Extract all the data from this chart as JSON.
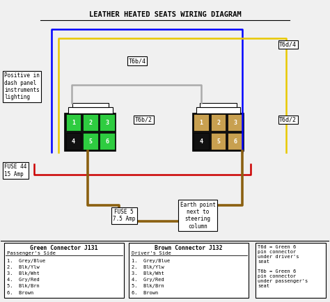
{
  "title": "LEATHER HEATED SEATS WIRING DIAGRAM",
  "bg_color": "#f0f0f0",
  "green_color": "#2ecc40",
  "tan_color": "#c8a050",
  "black_bg": "#111111",
  "wire_blue": "#0000ff",
  "wire_yellow": "#e8c800",
  "wire_red": "#cc0000",
  "wire_brown": "#8B6010",
  "label_T6b4": "T6b/4",
  "label_T6b2": "T6b/2",
  "label_T6d4": "T6d/4",
  "label_T6d2": "T6d/2",
  "label_fuse44": "FUSE 44\n15 Amp",
  "label_fuse5": "FUSE 5\n7.5 Amp",
  "label_earth": "Earth point\nnext to\nsteering\ncolumn",
  "label_positive": "Positive in\ndash panel\ninstruments\nlighting",
  "legend_left_title": "Green Connector J131",
  "legend_left_sub": "Passenger's Side",
  "legend_left_items": [
    "1.  Grey/Blue",
    "2.  Blk/Ylw",
    "3.  Blk/Wht",
    "4.  Gry/Red",
    "5.  Blk/Brn",
    "6.  Brown"
  ],
  "legend_right_title": "Brown Connector J132",
  "legend_right_sub": "Driver's Side",
  "legend_right_items": [
    "1.  Grey/Blue",
    "2.  Blk/Ylw",
    "3.  Blk/Wht",
    "4.  Gry/Red",
    "5.  Blk/Brn",
    "6.  Brown"
  ],
  "legend_note": "T6d = Green 6\npin connector\nunder driver's\nseat\n\nT6b = Green 6\npin connector\nunder passenger's\nseat"
}
